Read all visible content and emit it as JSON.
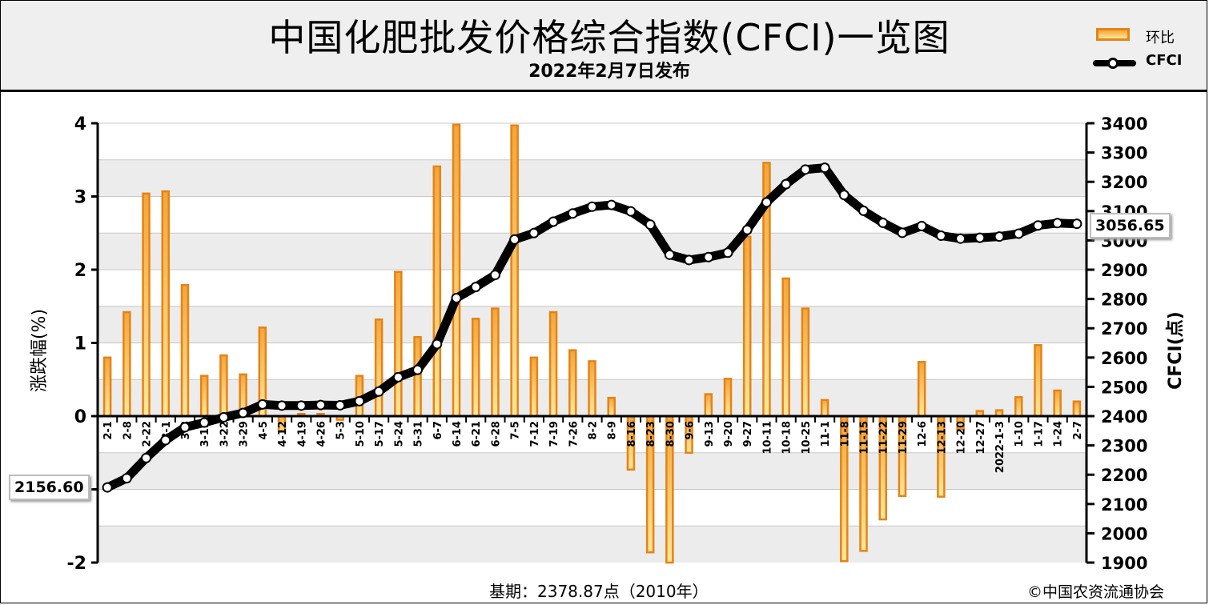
{
  "header": {
    "title": "中国化肥批发价格综合指数(CFCI)一览图",
    "subtitle": "2022年2月7日发布"
  },
  "legend": {
    "bar_label": "环比",
    "line_label": "CFCI"
  },
  "footer": {
    "base_text": "基期：2378.87点（2010年）",
    "copyright": "©中国农资流通协会"
  },
  "callouts": {
    "start_value": "2156.60",
    "end_value": "3056.65"
  },
  "colors": {
    "bar_fill_top": "#f4a63a",
    "bar_fill_bottom": "#ffe79a",
    "bar_border": "#e58316",
    "line": "#000000",
    "band_gray": "#ececec"
  },
  "chart_data": {
    "type": "bar+line",
    "categories": [
      "2-1",
      "2-8",
      "2-22",
      "3-1",
      "3-8",
      "3-15",
      "3-22",
      "3-29",
      "4-5",
      "4-12",
      "4-19",
      "4-26",
      "5-3",
      "5-10",
      "5-17",
      "5-24",
      "5-31",
      "6-7",
      "6-14",
      "6-21",
      "6-28",
      "7-5",
      "7-12",
      "7-19",
      "7-26",
      "8-2",
      "8-9",
      "8-16",
      "8-23",
      "8-30",
      "9-6",
      "9-13",
      "9-20",
      "9-27",
      "10-11",
      "10-18",
      "10-25",
      "11-1",
      "11-8",
      "11-15",
      "11-22",
      "11-29",
      "12-6",
      "12-13",
      "12-20",
      "12-27",
      "2022-1-3",
      "1-10",
      "1-17",
      "1-24",
      "2-7"
    ],
    "series": [
      {
        "name": "环比",
        "axis": "left",
        "values": [
          0.8,
          1.42,
          3.04,
          3.07,
          1.79,
          0.55,
          0.83,
          0.57,
          1.21,
          -0.2,
          0.03,
          0.03,
          -0.05,
          0.55,
          1.32,
          1.97,
          1.08,
          3.41,
          3.98,
          1.33,
          1.47,
          3.97,
          0.8,
          1.42,
          0.9,
          0.75,
          0.25,
          -0.73,
          -1.86,
          -2.0,
          -0.5,
          0.3,
          0.51,
          2.45,
          3.46,
          1.88,
          1.47,
          0.22,
          -1.98,
          -1.84,
          -1.41,
          -1.09,
          0.74,
          -1.1,
          -0.18,
          0.07,
          0.08,
          0.26,
          0.97,
          0.35,
          0.2
        ]
      },
      {
        "name": "CFCI",
        "axis": "right",
        "values": [
          2156.6,
          2188,
          2257,
          2318,
          2362,
          2378,
          2396,
          2411,
          2440,
          2436,
          2436,
          2438,
          2437,
          2451,
          2484,
          2533,
          2558,
          2646,
          2803,
          2841,
          2882,
          3003,
          3025,
          3064,
          3092,
          3115,
          3121,
          3099,
          3054,
          2951,
          2933,
          2943,
          2958,
          3036,
          3130,
          3192,
          3242,
          3248,
          3155,
          3101,
          3060,
          3026,
          3049,
          3016,
          3006,
          3009,
          3013,
          3023,
          3051,
          3059,
          3056.65
        ]
      }
    ],
    "y_left": {
      "label": "涨跌幅(%)",
      "ticks": [
        4,
        3,
        2,
        1,
        0,
        -1,
        -2
      ],
      "tick_labels": [
        "4",
        "3",
        "2",
        "1",
        "0",
        "",
        "-2"
      ],
      "range": [
        -2,
        4
      ]
    },
    "y_right": {
      "label": "CFCI(点)",
      "ticks": [
        3400,
        3300,
        3200,
        3100,
        3000,
        2900,
        2800,
        2700,
        2600,
        2500,
        2400,
        2300,
        2200,
        2100,
        2000,
        1900
      ],
      "range": [
        1900,
        3400
      ]
    },
    "grid": true
  }
}
